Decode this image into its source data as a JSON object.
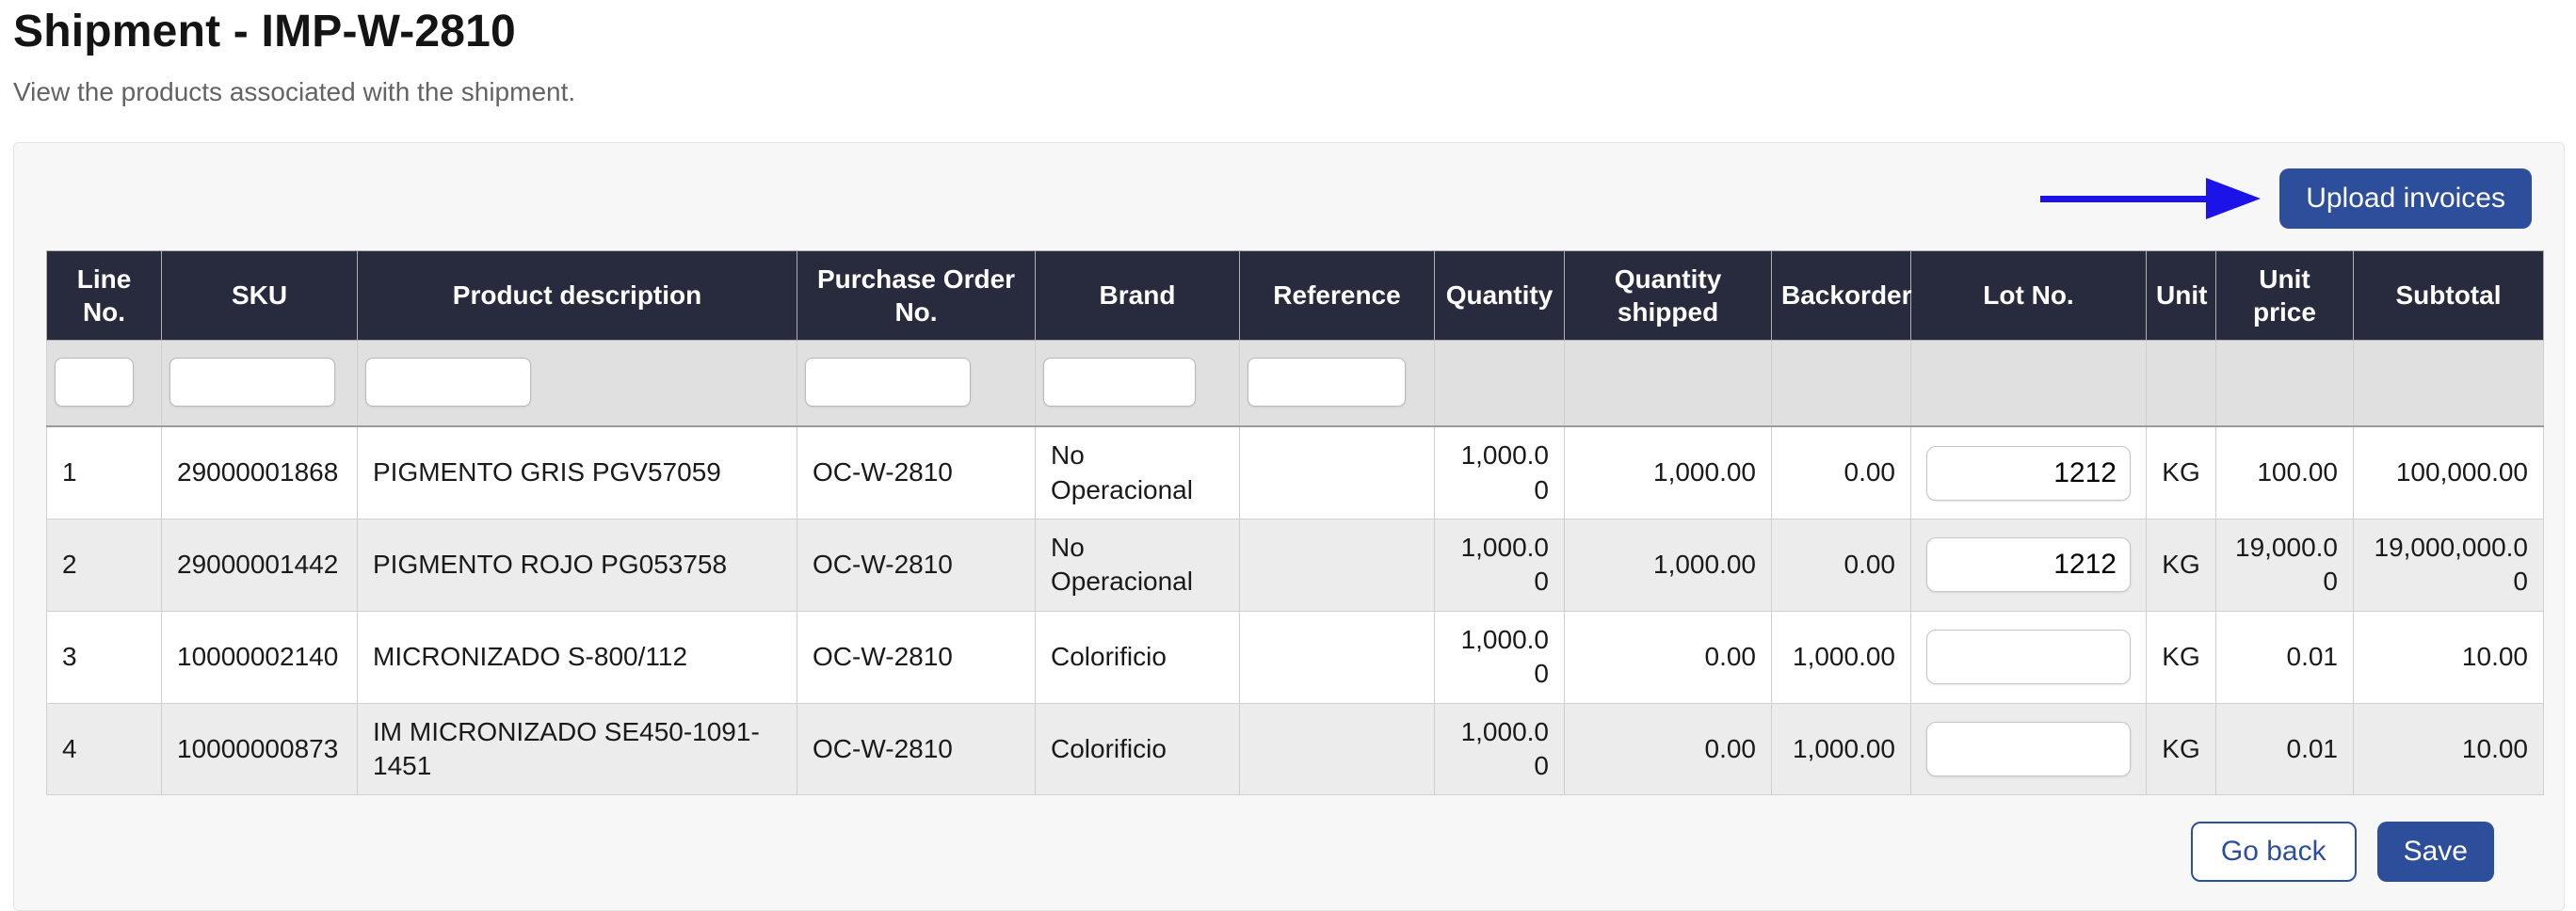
{
  "page": {
    "title": "Shipment - IMP-W-2810",
    "subtitle": "View the products associated with the shipment."
  },
  "toolbar": {
    "upload_label": "Upload invoices"
  },
  "footer": {
    "go_back_label": "Go back",
    "save_label": "Save"
  },
  "colors": {
    "primary": "#2d4f9b",
    "header-bg": "#272b3d",
    "arrow": "#1c13e8",
    "stripe": "#ececec",
    "filter-bg": "#e0e0e0",
    "card-bg": "#f7f7f8"
  },
  "table": {
    "columns": [
      "Line No.",
      "SKU",
      "Product description",
      "Purchase Order No.",
      "Brand",
      "Reference",
      "Quantity",
      "Quantity shipped",
      "Backorder",
      "Lot No.",
      "Unit",
      "Unit price",
      "Subtotal"
    ],
    "rows": [
      {
        "line_no": "1",
        "sku": "29000001868",
        "product_description": "PIGMENTO GRIS PGV57059",
        "purchase_order_no": "OC-W-2810",
        "brand": "No Operacional",
        "reference": "",
        "quantity": "1,000.00",
        "quantity_shipped": "1,000.00",
        "backorder": "0.00",
        "lot_no": "1212",
        "unit": "KG",
        "unit_price": "100.00",
        "subtotal": "100,000.00"
      },
      {
        "line_no": "2",
        "sku": "29000001442",
        "product_description": "PIGMENTO ROJO PG053758",
        "purchase_order_no": "OC-W-2810",
        "brand": "No Operacional",
        "reference": "",
        "quantity": "1,000.00",
        "quantity_shipped": "1,000.00",
        "backorder": "0.00",
        "lot_no": "1212",
        "unit": "KG",
        "unit_price": "19,000.00",
        "subtotal": "19,000,000.00"
      },
      {
        "line_no": "3",
        "sku": "10000002140",
        "product_description": "MICRONIZADO S-800/112",
        "purchase_order_no": "OC-W-2810",
        "brand": "Colorificio",
        "reference": "",
        "quantity": "1,000.00",
        "quantity_shipped": "0.00",
        "backorder": "1,000.00",
        "lot_no": "",
        "unit": "KG",
        "unit_price": "0.01",
        "subtotal": "10.00"
      },
      {
        "line_no": "4",
        "sku": "10000000873",
        "product_description": "IM MICRONIZADO SE450-1091-1451",
        "purchase_order_no": "OC-W-2810",
        "brand": "Colorificio",
        "reference": "",
        "quantity": "1,000.00",
        "quantity_shipped": "0.00",
        "backorder": "1,000.00",
        "lot_no": "",
        "unit": "KG",
        "unit_price": "0.01",
        "subtotal": "10.00"
      }
    ]
  }
}
